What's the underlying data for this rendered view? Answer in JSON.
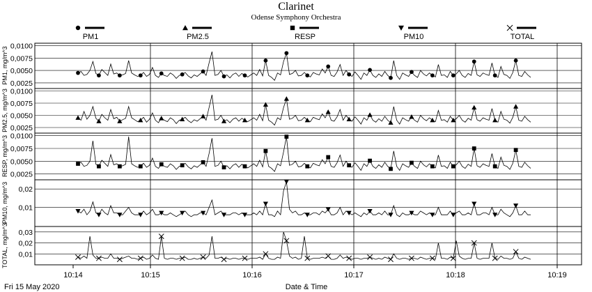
{
  "chart_data": {
    "type": "line",
    "title": "Clarinet",
    "subtitle": "Odense Symphony Orchestra",
    "xlabel": "Date & Time",
    "date_label": "Fri 15 May 2020",
    "x_ticks": [
      "10:14",
      "10:15",
      "10:16",
      "10:17",
      "10:18",
      "10:19"
    ],
    "grid": true,
    "legend_position": "top",
    "line_color": "#000000",
    "series": [
      {
        "name": "PM1",
        "marker": "circle",
        "ylabel": "PM1, mg/m^3",
        "yticks": [
          "0,0025",
          "0,0050",
          "0,0075",
          "0,0100"
        ],
        "ylim": [
          0.0015,
          0.0105
        ],
        "values": [
          0.0045,
          0.0048,
          0.004,
          0.0042,
          0.005,
          0.0068,
          0.0044,
          0.004,
          0.0052,
          0.0046,
          0.004,
          0.0063,
          0.0043,
          0.0045,
          0.004,
          0.0041,
          0.0044,
          0.007,
          0.0045,
          0.0041,
          0.0038,
          0.004,
          0.0046,
          0.0038,
          0.0042,
          0.0056,
          0.004,
          0.0036,
          0.0044,
          0.004,
          0.0038,
          0.0045,
          0.0041,
          0.0034,
          0.004,
          0.0042,
          0.0046,
          0.0039,
          0.0035,
          0.0041,
          0.0038,
          0.0043,
          0.0048,
          0.004,
          0.0065,
          0.0088,
          0.004,
          0.0042,
          0.005,
          0.0038,
          0.0041,
          0.0035,
          0.0042,
          0.0045,
          0.0038,
          0.0044,
          0.004,
          0.0037,
          0.0041,
          0.0045,
          0.004,
          0.0052,
          0.0039,
          0.007,
          0.004,
          0.0036,
          0.003,
          0.0045,
          0.0041,
          0.0068,
          0.0085,
          0.0042,
          0.0044,
          0.005,
          0.0039,
          0.004,
          0.0046,
          0.004,
          0.0037,
          0.0046,
          0.0043,
          0.0041,
          0.0053,
          0.0045,
          0.0058,
          0.004,
          0.0038,
          0.0047,
          0.0062,
          0.004,
          0.005,
          0.0042,
          0.0038,
          0.0047,
          0.004,
          0.0032,
          0.0045,
          0.004,
          0.0051,
          0.004,
          0.0036,
          0.0043,
          0.0038,
          0.0048,
          0.004,
          0.0035,
          0.007,
          0.004,
          0.0032,
          0.0045,
          0.0041,
          0.0038,
          0.0047,
          0.004,
          0.0036,
          0.005,
          0.0043,
          0.0039,
          0.0045,
          0.004,
          0.0037,
          0.0062,
          0.004,
          0.0041,
          0.0036,
          0.0048,
          0.004,
          0.0043,
          0.005,
          0.004,
          0.0036,
          0.0044,
          0.004,
          0.0068,
          0.0041,
          0.0038,
          0.0045,
          0.0042,
          0.004,
          0.0065,
          0.004,
          0.0036,
          0.0058,
          0.0042,
          0.004,
          0.0034,
          0.0046,
          0.007,
          0.004,
          0.0038,
          0.0048,
          0.0041,
          0.0036
        ]
      },
      {
        "name": "PM2.5",
        "marker": "triangle-up",
        "ylabel": "PM2.5, mg/m^3",
        "yticks": [
          "0,0025",
          "0,0050",
          "0,0075",
          "0,0100"
        ],
        "ylim": [
          0.0015,
          0.0105
        ],
        "values": [
          0.0045,
          0.004,
          0.0058,
          0.0042,
          0.005,
          0.0068,
          0.0044,
          0.0038,
          0.0052,
          0.0045,
          0.004,
          0.0062,
          0.0043,
          0.0046,
          0.0038,
          0.0041,
          0.0044,
          0.0068,
          0.0045,
          0.0041,
          0.0037,
          0.004,
          0.0046,
          0.0036,
          0.0042,
          0.0055,
          0.004,
          0.0035,
          0.0044,
          0.004,
          0.0037,
          0.0045,
          0.0041,
          0.0033,
          0.004,
          0.0042,
          0.0046,
          0.0039,
          0.0035,
          0.0041,
          0.0038,
          0.0043,
          0.0048,
          0.004,
          0.0066,
          0.0092,
          0.004,
          0.0042,
          0.005,
          0.0038,
          0.0041,
          0.0035,
          0.0042,
          0.0045,
          0.0038,
          0.0044,
          0.004,
          0.0037,
          0.0041,
          0.0045,
          0.004,
          0.0052,
          0.0039,
          0.0072,
          0.004,
          0.0036,
          0.003,
          0.0045,
          0.0041,
          0.0066,
          0.0084,
          0.0042,
          0.0044,
          0.005,
          0.0039,
          0.004,
          0.0046,
          0.004,
          0.0037,
          0.0046,
          0.0043,
          0.0041,
          0.0053,
          0.0045,
          0.0057,
          0.004,
          0.0038,
          0.0047,
          0.0062,
          0.004,
          0.005,
          0.0042,
          0.0038,
          0.0047,
          0.004,
          0.0032,
          0.0045,
          0.004,
          0.0051,
          0.004,
          0.0036,
          0.0043,
          0.0038,
          0.0048,
          0.004,
          0.0035,
          0.0068,
          0.004,
          0.0032,
          0.0045,
          0.0041,
          0.0038,
          0.0047,
          0.004,
          0.0036,
          0.005,
          0.0043,
          0.0039,
          0.0045,
          0.004,
          0.0037,
          0.006,
          0.004,
          0.0041,
          0.0036,
          0.0048,
          0.004,
          0.0043,
          0.005,
          0.004,
          0.0036,
          0.0044,
          0.004,
          0.0066,
          0.0041,
          0.0038,
          0.0045,
          0.0042,
          0.004,
          0.0064,
          0.004,
          0.0036,
          0.0058,
          0.0042,
          0.004,
          0.0034,
          0.0046,
          0.0068,
          0.004,
          0.0038,
          0.0048,
          0.0041,
          0.0036
        ]
      },
      {
        "name": "RESP",
        "marker": "square",
        "ylabel": "RESP, mg/m^3",
        "yticks": [
          "0,0025",
          "0,0050",
          "0,0075",
          "0,0100"
        ],
        "ylim": [
          0.0015,
          0.0105
        ],
        "values": [
          0.0045,
          0.0048,
          0.004,
          0.0042,
          0.005,
          0.009,
          0.0044,
          0.004,
          0.0052,
          0.0046,
          0.004,
          0.0063,
          0.0043,
          0.0045,
          0.004,
          0.0041,
          0.0044,
          0.0098,
          0.0045,
          0.0041,
          0.0038,
          0.004,
          0.0046,
          0.0038,
          0.0042,
          0.0056,
          0.004,
          0.0036,
          0.0044,
          0.004,
          0.0038,
          0.0045,
          0.0041,
          0.0034,
          0.004,
          0.0042,
          0.0046,
          0.0039,
          0.0035,
          0.0041,
          0.0038,
          0.0043,
          0.0048,
          0.004,
          0.0065,
          0.0095,
          0.004,
          0.0042,
          0.005,
          0.0038,
          0.0041,
          0.0035,
          0.0042,
          0.0045,
          0.0038,
          0.0044,
          0.004,
          0.0037,
          0.0041,
          0.0045,
          0.004,
          0.0052,
          0.0039,
          0.007,
          0.004,
          0.0036,
          0.003,
          0.0045,
          0.0041,
          0.0068,
          0.0098,
          0.0042,
          0.0044,
          0.005,
          0.0039,
          0.004,
          0.0046,
          0.004,
          0.0037,
          0.0046,
          0.0043,
          0.0041,
          0.0053,
          0.0045,
          0.0058,
          0.004,
          0.0038,
          0.0047,
          0.0062,
          0.004,
          0.005,
          0.0042,
          0.0038,
          0.0047,
          0.004,
          0.0032,
          0.0045,
          0.004,
          0.0051,
          0.004,
          0.0036,
          0.0043,
          0.0038,
          0.0048,
          0.004,
          0.0035,
          0.007,
          0.004,
          0.0032,
          0.0045,
          0.0041,
          0.0038,
          0.0047,
          0.004,
          0.0036,
          0.005,
          0.0043,
          0.0039,
          0.0045,
          0.004,
          0.0037,
          0.0062,
          0.004,
          0.0041,
          0.0036,
          0.0048,
          0.004,
          0.0043,
          0.005,
          0.004,
          0.0036,
          0.0044,
          0.004,
          0.0075,
          0.0041,
          0.0038,
          0.0045,
          0.0042,
          0.004,
          0.0065,
          0.004,
          0.0036,
          0.0058,
          0.0042,
          0.004,
          0.0034,
          0.0046,
          0.0072,
          0.004,
          0.0038,
          0.0048,
          0.0041,
          0.0036
        ]
      },
      {
        "name": "PM10",
        "marker": "triangle-down",
        "ylabel": "PM10, mg/m^3",
        "yticks": [
          "0,01",
          "0,02"
        ],
        "ylim": [
          0.0,
          0.025
        ],
        "values": [
          0.008,
          0.007,
          0.009,
          0.006,
          0.008,
          0.013,
          0.007,
          0.006,
          0.009,
          0.007,
          0.006,
          0.011,
          0.007,
          0.007,
          0.006,
          0.006,
          0.008,
          0.01,
          0.007,
          0.006,
          0.006,
          0.006,
          0.008,
          0.006,
          0.007,
          0.009,
          0.006,
          0.006,
          0.007,
          0.006,
          0.006,
          0.007,
          0.006,
          0.005,
          0.006,
          0.007,
          0.008,
          0.006,
          0.005,
          0.006,
          0.006,
          0.007,
          0.007,
          0.006,
          0.01,
          0.014,
          0.006,
          0.007,
          0.008,
          0.006,
          0.006,
          0.006,
          0.007,
          0.007,
          0.006,
          0.007,
          0.006,
          0.006,
          0.006,
          0.007,
          0.006,
          0.008,
          0.006,
          0.012,
          0.006,
          0.006,
          0.005,
          0.008,
          0.006,
          0.019,
          0.024,
          0.009,
          0.007,
          0.008,
          0.006,
          0.006,
          0.007,
          0.006,
          0.006,
          0.007,
          0.007,
          0.006,
          0.008,
          0.007,
          0.009,
          0.006,
          0.006,
          0.007,
          0.01,
          0.006,
          0.008,
          0.007,
          0.006,
          0.007,
          0.006,
          0.005,
          0.007,
          0.006,
          0.008,
          0.006,
          0.006,
          0.007,
          0.006,
          0.008,
          0.006,
          0.006,
          0.011,
          0.006,
          0.005,
          0.007,
          0.006,
          0.006,
          0.007,
          0.006,
          0.006,
          0.008,
          0.007,
          0.006,
          0.007,
          0.006,
          0.006,
          0.01,
          0.006,
          0.006,
          0.006,
          0.008,
          0.006,
          0.007,
          0.008,
          0.006,
          0.006,
          0.007,
          0.006,
          0.012,
          0.006,
          0.006,
          0.007,
          0.007,
          0.006,
          0.01,
          0.006,
          0.006,
          0.009,
          0.007,
          0.006,
          0.005,
          0.007,
          0.011,
          0.006,
          0.006,
          0.008,
          0.006,
          0.006
        ]
      },
      {
        "name": "TOTAL",
        "marker": "cross",
        "ylabel": "TOTAL, mg/m^3",
        "yticks": [
          "0,01",
          "0,02",
          "0,03"
        ],
        "ylim": [
          0.0,
          0.035
        ],
        "values": [
          0.007,
          0.006,
          0.008,
          0.006,
          0.026,
          0.009,
          0.006,
          0.006,
          0.007,
          0.006,
          0.006,
          0.01,
          0.006,
          0.006,
          0.005,
          0.006,
          0.007,
          0.008,
          0.006,
          0.006,
          0.005,
          0.006,
          0.007,
          0.005,
          0.006,
          0.009,
          0.006,
          0.005,
          0.026,
          0.006,
          0.005,
          0.006,
          0.006,
          0.005,
          0.006,
          0.006,
          0.007,
          0.005,
          0.005,
          0.006,
          0.005,
          0.006,
          0.007,
          0.006,
          0.009,
          0.026,
          0.006,
          0.006,
          0.007,
          0.005,
          0.006,
          0.005,
          0.006,
          0.006,
          0.005,
          0.006,
          0.006,
          0.005,
          0.006,
          0.006,
          0.006,
          0.007,
          0.005,
          0.01,
          0.006,
          0.005,
          0.005,
          0.007,
          0.006,
          0.03,
          0.022,
          0.008,
          0.006,
          0.007,
          0.005,
          0.006,
          0.026,
          0.006,
          0.005,
          0.006,
          0.006,
          0.006,
          0.007,
          0.006,
          0.008,
          0.005,
          0.005,
          0.006,
          0.009,
          0.006,
          0.007,
          0.006,
          0.005,
          0.006,
          0.006,
          0.005,
          0.006,
          0.006,
          0.007,
          0.006,
          0.005,
          0.006,
          0.005,
          0.007,
          0.006,
          0.005,
          0.01,
          0.006,
          0.005,
          0.006,
          0.006,
          0.005,
          0.006,
          0.006,
          0.005,
          0.007,
          0.006,
          0.005,
          0.006,
          0.006,
          0.005,
          0.02,
          0.006,
          0.006,
          0.005,
          0.007,
          0.006,
          0.022,
          0.008,
          0.006,
          0.005,
          0.006,
          0.006,
          0.02,
          0.006,
          0.005,
          0.006,
          0.006,
          0.006,
          0.02,
          0.006,
          0.005,
          0.008,
          0.006,
          0.006,
          0.005,
          0.006,
          0.012,
          0.006,
          0.005,
          0.007,
          0.006,
          0.005
        ]
      }
    ]
  }
}
